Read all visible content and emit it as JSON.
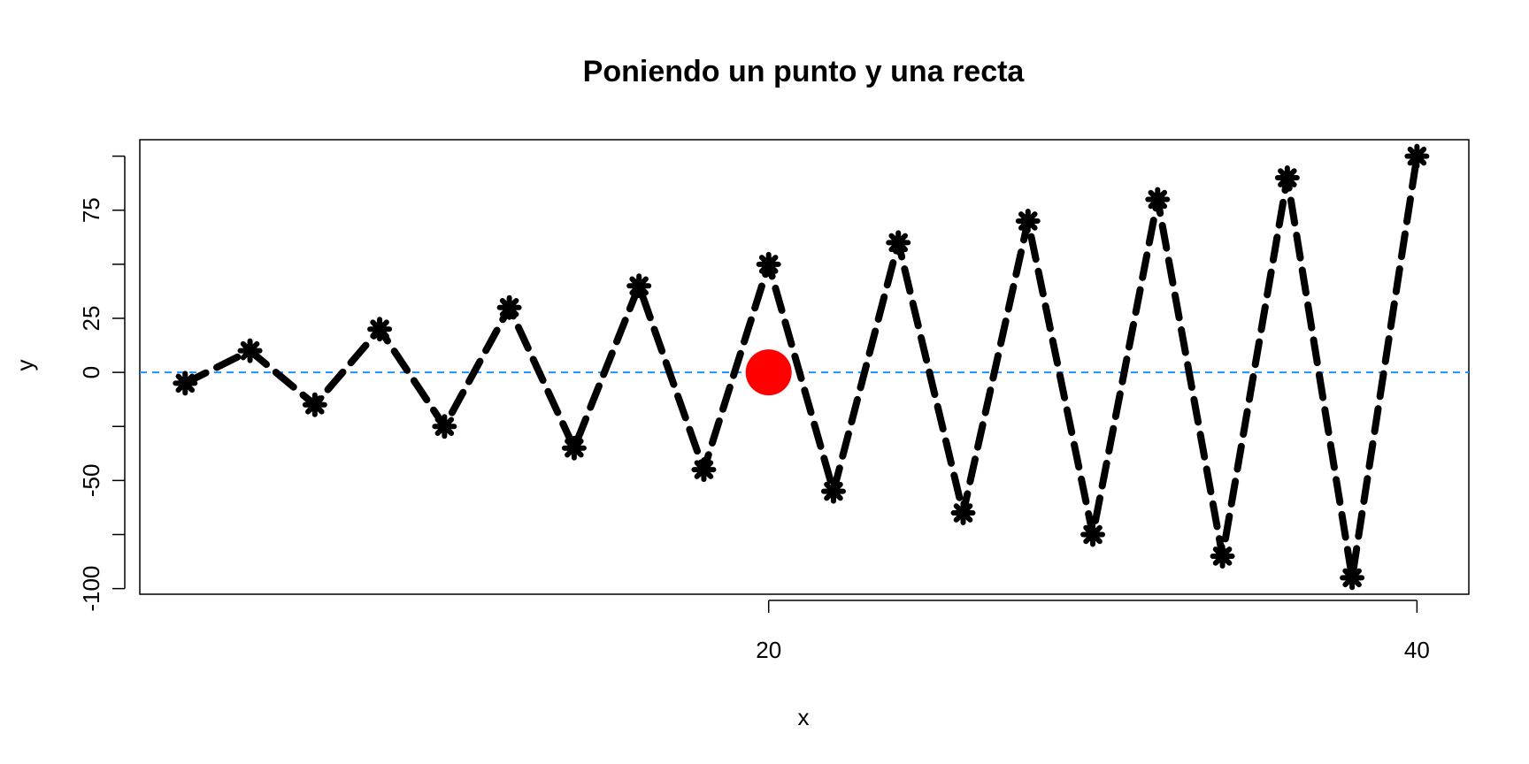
{
  "chart_data": {
    "type": "line",
    "title": "Poniendo un punto y una recta",
    "xlabel": "x",
    "ylabel": "y",
    "xlim": [
      0.6,
      41.6
    ],
    "ylim": [
      -102.6,
      107.6
    ],
    "x_ticks": [
      20,
      40
    ],
    "x_tick_labels": [
      "20",
      "40"
    ],
    "y_ticks": [
      -100,
      -75,
      -50,
      -25,
      0,
      25,
      50,
      75,
      100
    ],
    "y_tick_labels": [
      "-100",
      "",
      "-50",
      "",
      "0",
      "25",
      "",
      "75",
      ""
    ],
    "grid": false,
    "series": [
      {
        "x": [
          2,
          4,
          6,
          8,
          10,
          12,
          14,
          16,
          18,
          20,
          22,
          24,
          26,
          28,
          30,
          32,
          34,
          36,
          38,
          40
        ],
        "y": [
          -5,
          10,
          -15,
          20,
          -25,
          30,
          -35,
          40,
          -45,
          50,
          -55,
          60,
          -65,
          70,
          -75,
          80,
          -85,
          90,
          -95,
          100
        ],
        "line_style": "dashed",
        "marker": "asterisk",
        "color": "#000000"
      }
    ],
    "highlight_point": {
      "x": 20,
      "y": 0,
      "color": "#ff0000"
    },
    "reference_line": {
      "y": 0,
      "color": "#1e90ff",
      "style": "dashed"
    }
  }
}
